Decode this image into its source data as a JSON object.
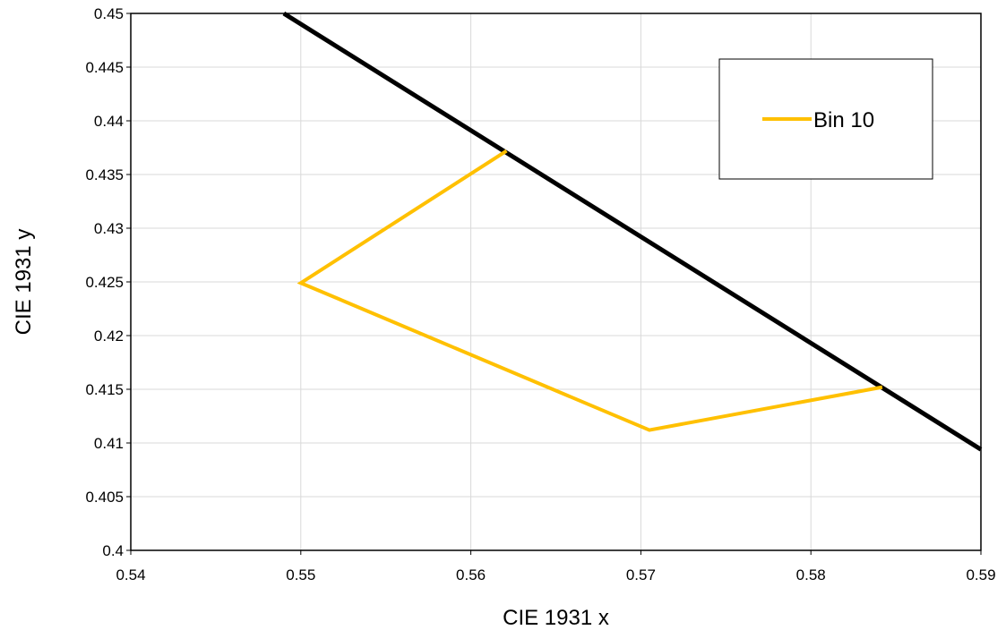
{
  "chart_data": {
    "type": "line",
    "title": "",
    "xlabel": "CIE 1931 x",
    "ylabel": "CIE 1931 y",
    "xlim": [
      0.54,
      0.59
    ],
    "ylim": [
      0.4,
      0.45
    ],
    "x_ticks": [
      "0.54",
      "0.55",
      "0.56",
      "0.57",
      "0.58",
      "0.59"
    ],
    "y_ticks": [
      "0.4",
      "0.405",
      "0.41",
      "0.415",
      "0.42",
      "0.425",
      "0.43",
      "0.435",
      "0.44",
      "0.445",
      "0.45"
    ],
    "grid": true,
    "legend_position": "top-right",
    "series": [
      {
        "name": "",
        "color": "#000000",
        "points": [
          [
            0.549,
            0.45
          ],
          [
            0.59,
            0.4094
          ]
        ]
      },
      {
        "name": "Bin 10",
        "color": "#FFC000",
        "points": [
          [
            0.5621,
            0.4372
          ],
          [
            0.55,
            0.4249
          ],
          [
            0.5705,
            0.4112
          ],
          [
            0.5842,
            0.4152
          ]
        ]
      }
    ]
  }
}
